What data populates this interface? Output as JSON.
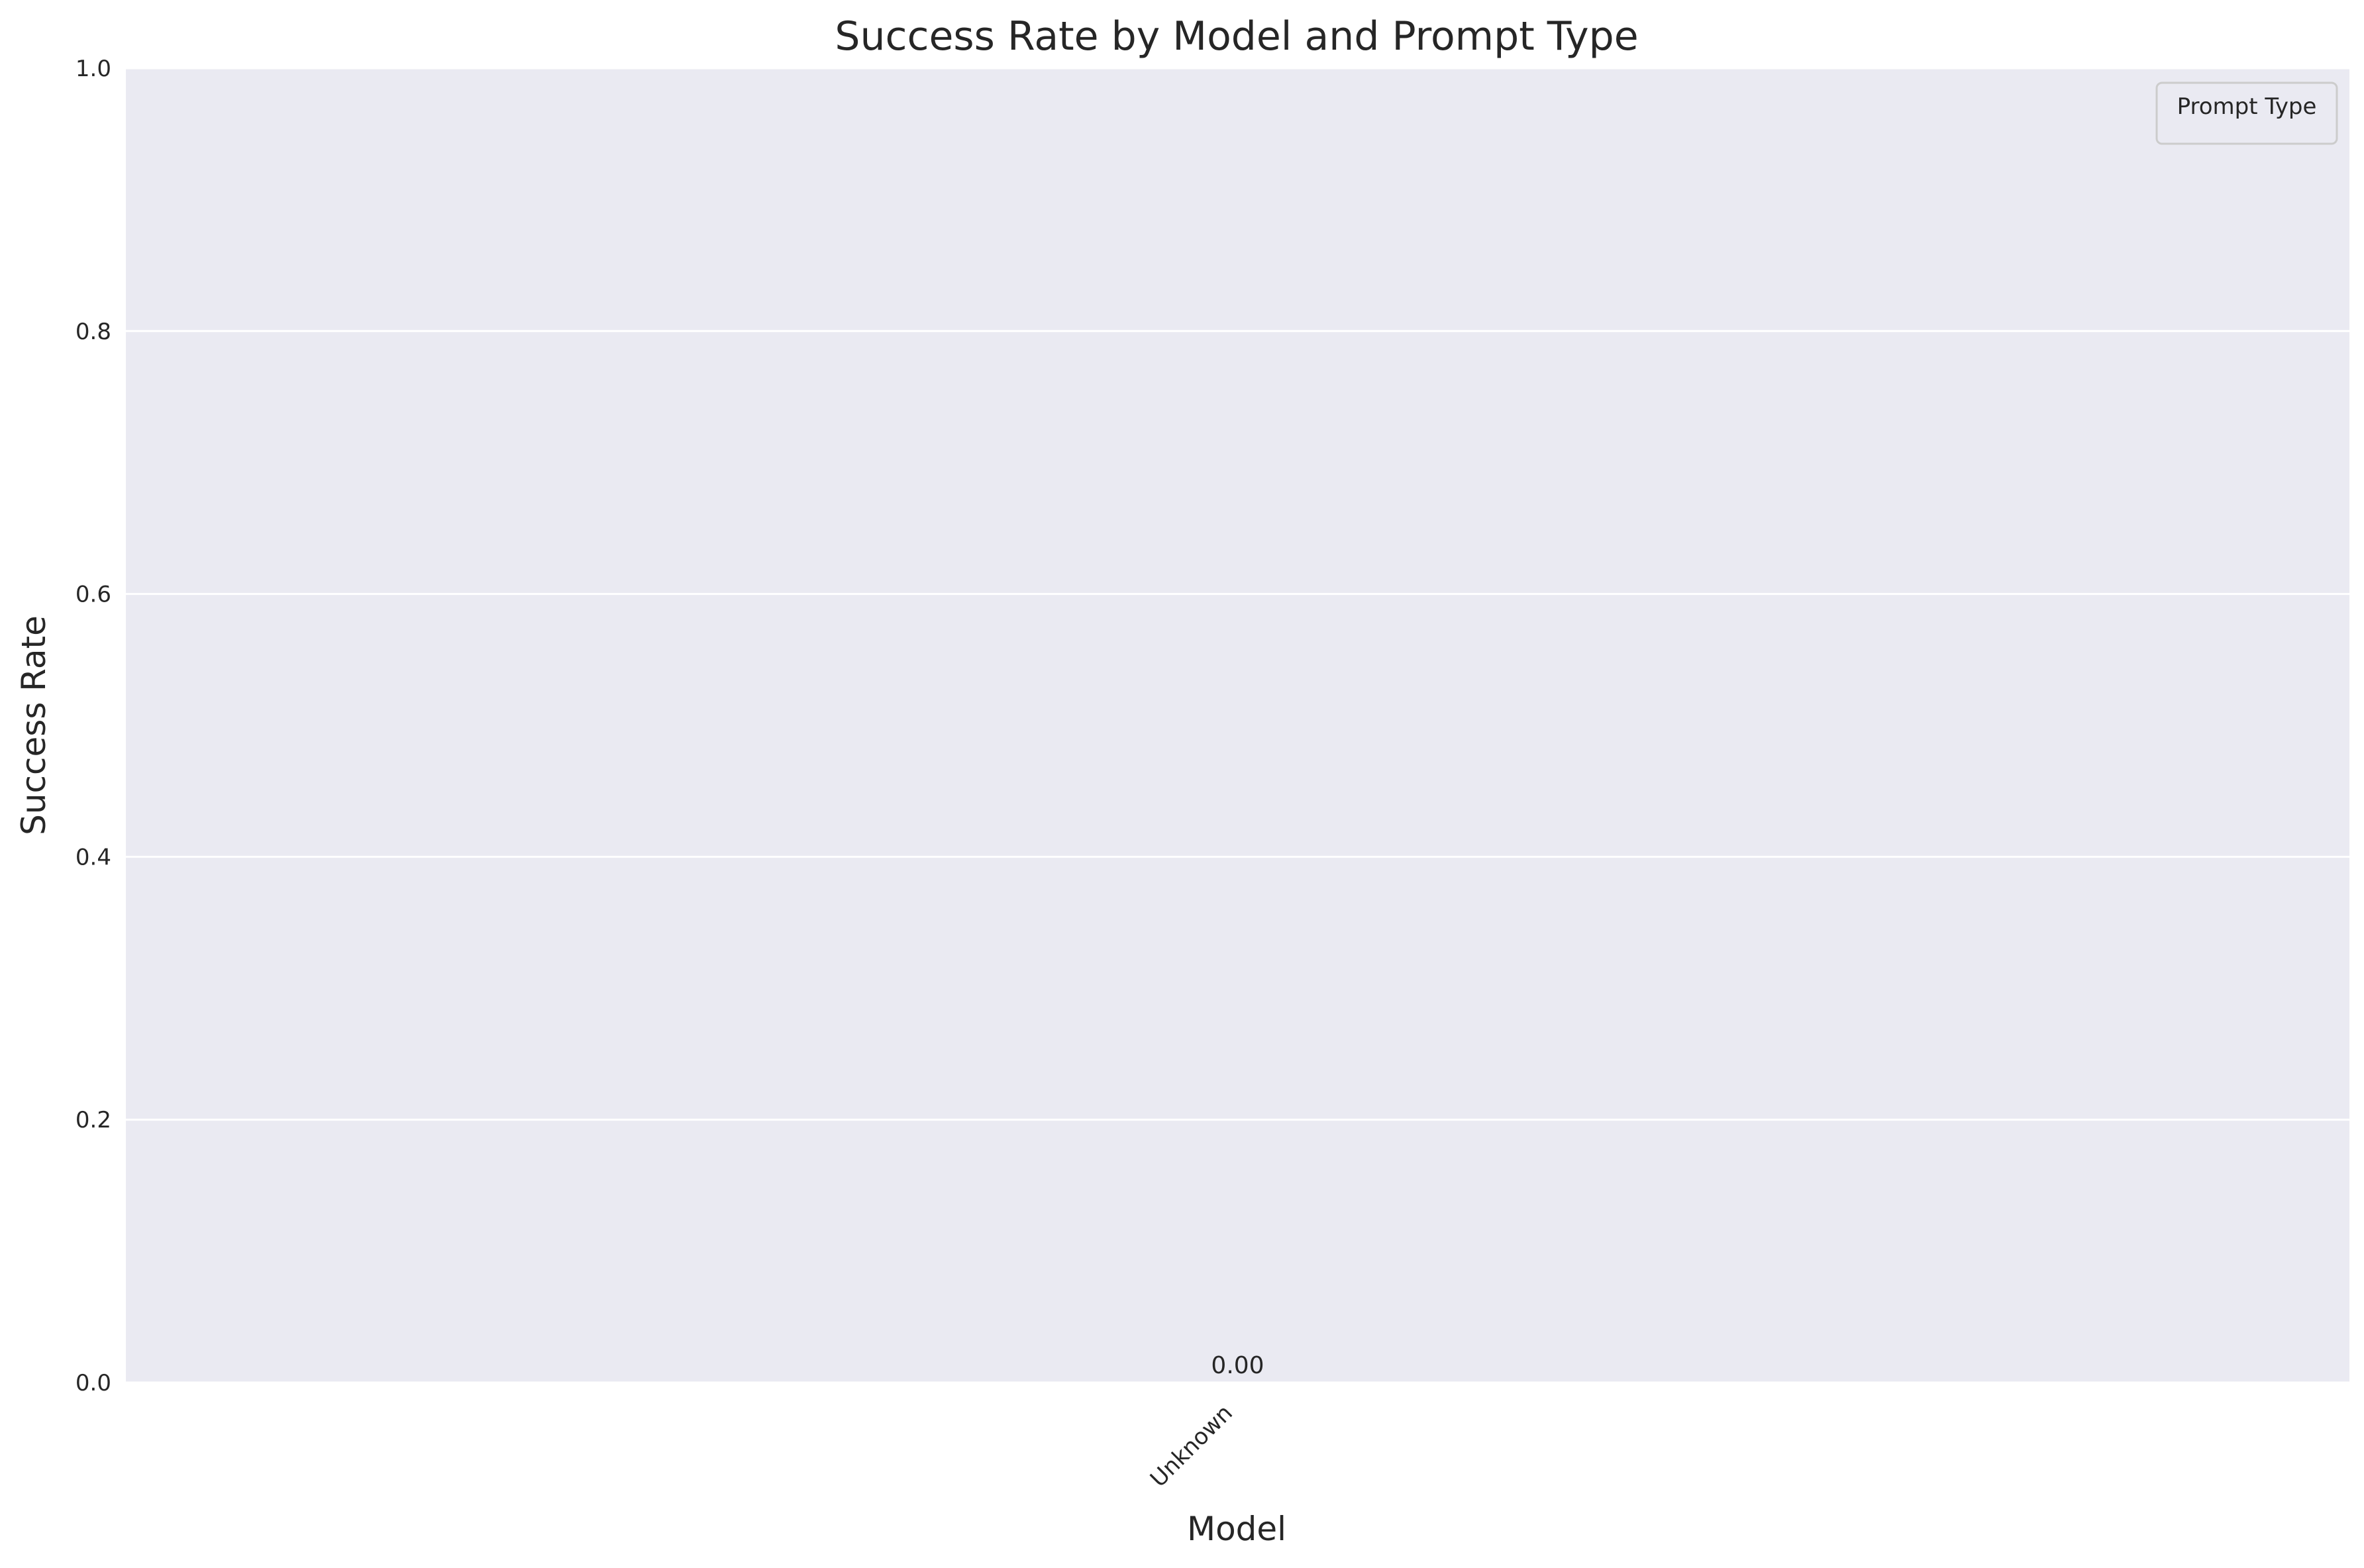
{
  "chart_data": {
    "type": "bar",
    "title": "Success Rate by Model and Prompt Type",
    "xlabel": "Model",
    "ylabel": "Success Rate",
    "categories": [
      "Unknown"
    ],
    "series": [
      {
        "values": [
          0.0
        ]
      }
    ],
    "data_labels": [
      "0.00"
    ],
    "ylim": [
      0,
      1.0
    ],
    "yticks": [
      "0.0",
      "0.2",
      "0.4",
      "0.6",
      "0.8",
      "1.0"
    ],
    "grid": true,
    "legend": {
      "title": "Prompt Type",
      "placement": "top-right"
    },
    "colors": {
      "background": "#eaeaf2",
      "grid": "#ffffff",
      "text": "#262626"
    }
  }
}
